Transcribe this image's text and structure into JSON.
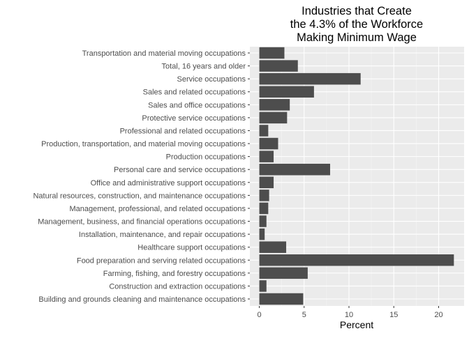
{
  "chart_data": {
    "type": "bar",
    "orientation": "horizontal",
    "title_lines": [
      "Industries that Create",
      "the 4.3% of the Workforce",
      "Making Minimum Wage"
    ],
    "xlabel": "Percent",
    "ylabel": "",
    "xlim": [
      0,
      22
    ],
    "x_ticks": [
      0,
      5,
      10,
      15,
      20
    ],
    "grid": true,
    "colors": {
      "bar": "#4d4d4d",
      "panel": "#ebebeb",
      "grid_major": "#ffffff",
      "text": "#4d4d4d",
      "title": "#000000"
    },
    "categories": [
      "Transportation and material moving occupations",
      "Total, 16 years and older",
      "Service occupations",
      "Sales and related occupations",
      "Sales and office occupations",
      "Protective service occupations",
      "Professional and related occupations",
      "Production, transportation, and material moving occupations",
      "Production occupations",
      "Personal care and service occupations",
      "Office and administrative support occupations",
      "Natural resources, construction, and maintenance occupations",
      "Management, professional, and related occupations",
      "Management, business, and financial operations occupations",
      "Installation, maintenance, and repair occupations",
      "Healthcare support occupations",
      "Food preparation and serving related occupations",
      "Farming, fishing, and forestry occupations",
      "Construction and extraction occupations",
      "Building and grounds cleaning and maintenance occupations"
    ],
    "values": [
      2.8,
      4.3,
      11.3,
      6.1,
      3.4,
      3.1,
      1.0,
      2.1,
      1.6,
      7.9,
      1.6,
      1.1,
      1.0,
      0.8,
      0.6,
      3.0,
      21.7,
      5.4,
      0.8,
      4.9
    ]
  }
}
